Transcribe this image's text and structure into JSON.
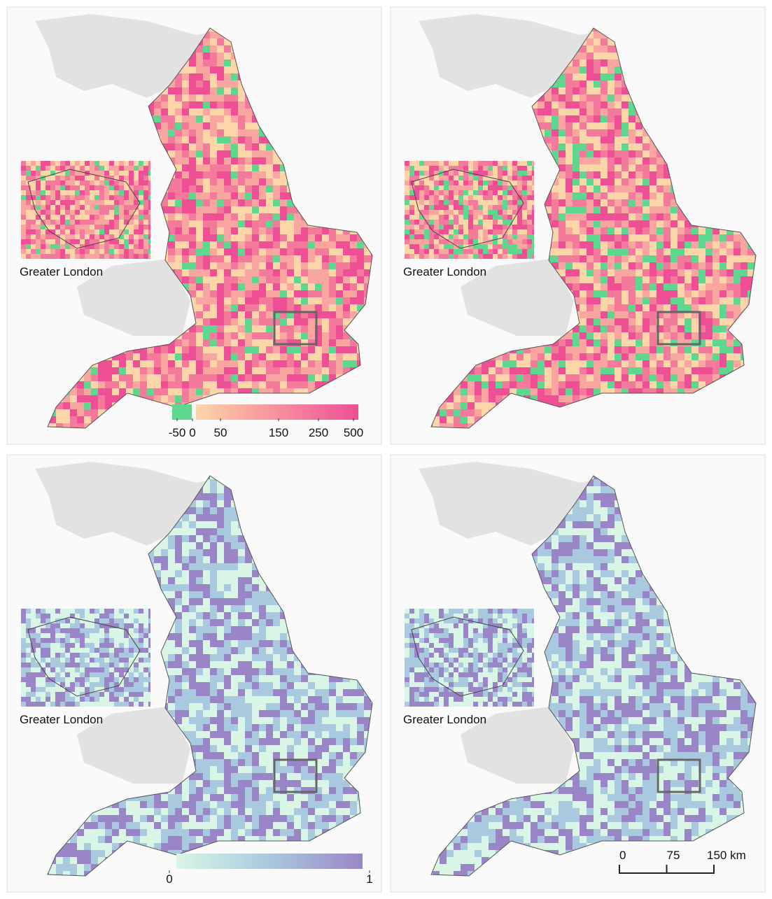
{
  "panels": [
    {
      "inset_label": "Greater London"
    },
    {
      "inset_label": "Greater London"
    },
    {
      "inset_label": "Greater London"
    },
    {
      "inset_label": "Greater London"
    }
  ],
  "legend_top": {
    "ticks": [
      -50,
      0,
      50,
      150,
      250,
      500
    ],
    "colors": [
      "#5fd88f",
      "#fcd6a8",
      "#f9a6a0",
      "#f47a9c",
      "#ee4f95"
    ]
  },
  "legend_bottom": {
    "lim": [
      0,
      1
    ],
    "ticks": [
      0,
      1
    ],
    "colors": [
      "#d8f5e6",
      "#a9c9de",
      "#9a86c7"
    ]
  },
  "scale_bar": {
    "lim": [
      0,
      150
    ],
    "ticks": [
      0,
      75,
      {
        "value": 150,
        "label": "150 km"
      }
    ]
  }
}
